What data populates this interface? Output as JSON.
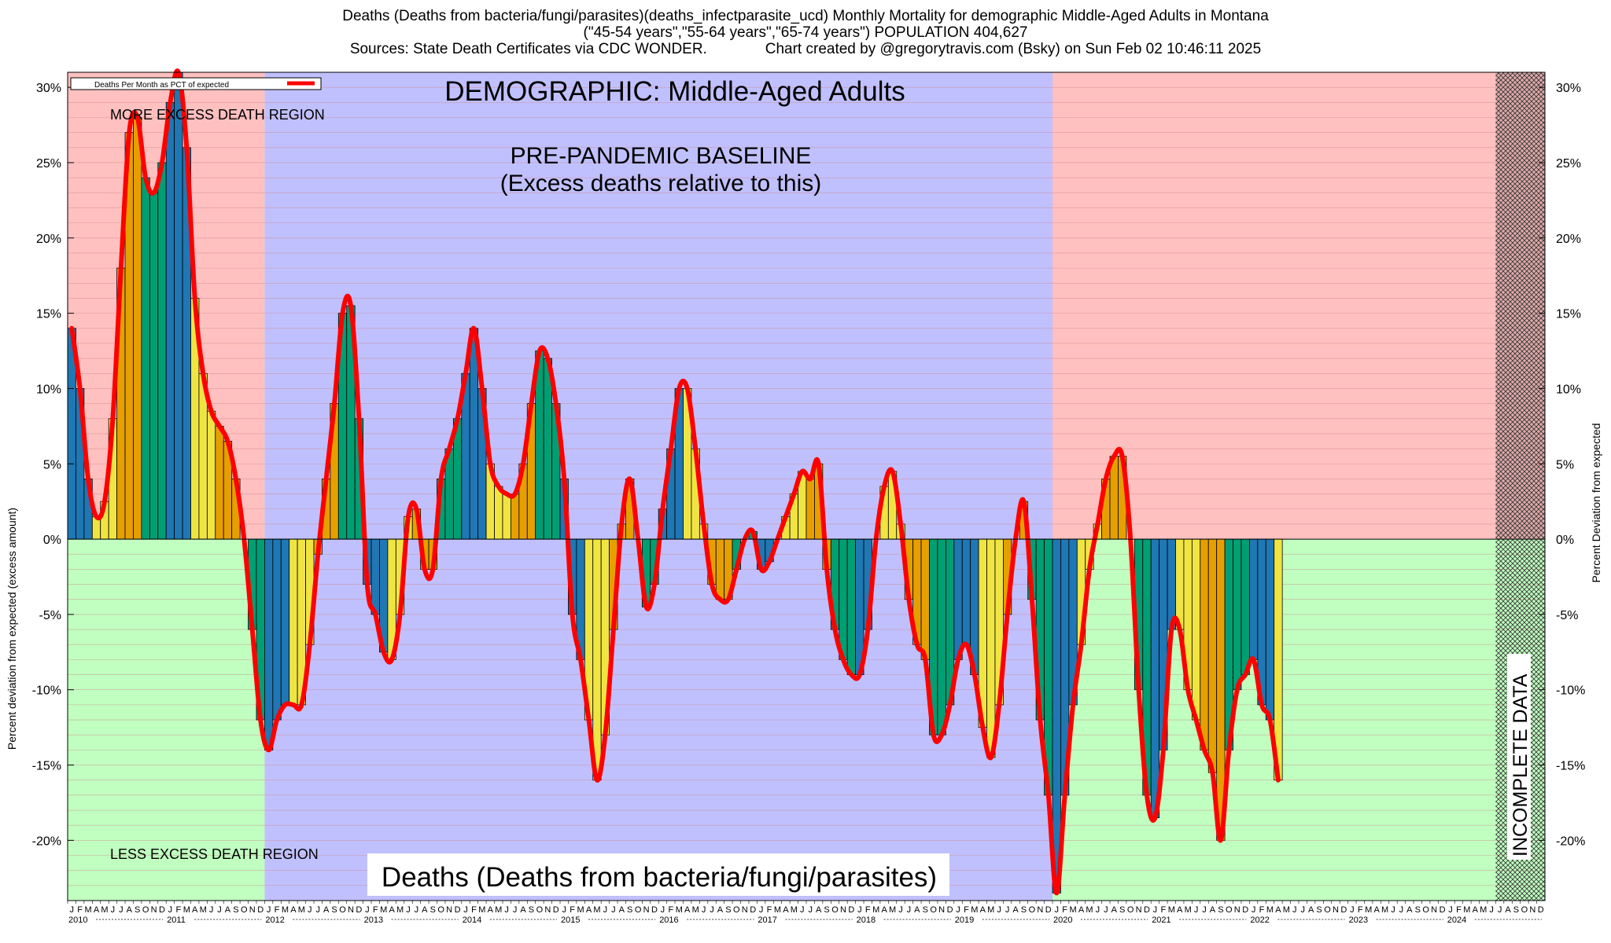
{
  "header": {
    "line1": "Deaths (Deaths from bacteria/fungi/parasites)(deaths_infectparasite_ucd) Monthly Mortality for demographic Middle-Aged Adults in Montana",
    "line2": "(\"45-54 years\",\"55-64 years\",\"65-74 years\") POPULATION 404,627",
    "line3_left": "Sources: State Death Certificates via CDC WONDER.",
    "line3_right": "Chart created by @gregorytravis.com (Bsky) on Sun Feb 02 10:46:11 2025"
  },
  "labels": {
    "demographic": "DEMOGRAPHIC: Middle-Aged Adults",
    "baseline_line1": "PRE-PANDEMIC BASELINE",
    "baseline_line2": "(Excess deaths relative to this)",
    "more_region": "MORE EXCESS DEATH REGION",
    "less_region": "LESS EXCESS DEATH REGION",
    "bottom_title": "Deaths (Deaths from bacteria/fungi/parasites)",
    "incomplete": "INCOMPLETE DATA",
    "legend": "Deaths Per Month as PCT of expected",
    "ylabel_left": "Percent deviation from expected (excess amount)",
    "ylabel_right": "Percent Deviation from expected"
  },
  "colors": {
    "excess_region": "#ffc0c0",
    "deficit_region": "#c0ffc0",
    "baseline_region": "#c0c0ff",
    "line": "#ff0000",
    "bar_palette": [
      "#1f77b4",
      "#f0e442",
      "#e69f00",
      "#009e73"
    ]
  },
  "chart_data": {
    "type": "bar",
    "x_start": "2010-01",
    "ylim": [
      -24,
      31
    ],
    "yticks": [
      -20,
      -15,
      -10,
      -5,
      0,
      5,
      10,
      15,
      20,
      25,
      30
    ],
    "ytick_labels": [
      "-20%",
      "-15%",
      "-10%",
      "-5%",
      "0%",
      "5%",
      "10%",
      "15%",
      "20%",
      "25%",
      "30%"
    ],
    "month_labels": [
      "J",
      "F",
      "M",
      "A",
      "M",
      "J",
      "J",
      "A",
      "S",
      "O",
      "N",
      "D"
    ],
    "years": [
      "2010",
      "2011",
      "2012",
      "2013",
      "2014",
      "2015",
      "2016",
      "2017",
      "2018",
      "2019",
      "2020",
      "2021",
      "2022",
      "2023",
      "2024"
    ],
    "baseline_period": [
      "2012-01",
      "2019-12"
    ],
    "incomplete_from": "2024-07",
    "values": [
      14,
      10,
      4,
      1.5,
      2.5,
      8,
      18,
      27,
      28,
      24,
      23,
      25,
      29,
      31,
      26,
      16,
      11,
      8.5,
      7.5,
      6.5,
      4,
      0,
      -6,
      -12,
      -14,
      -12,
      -11,
      -11,
      -11,
      -7,
      -1,
      4,
      9,
      15,
      15.5,
      8,
      -3,
      -5,
      -7.5,
      -8,
      -5,
      1.5,
      2,
      -2,
      -2,
      4,
      6,
      8,
      11,
      14,
      10,
      5,
      3.5,
      3,
      3,
      5,
      9,
      12.5,
      12,
      9,
      4,
      -5,
      -8,
      -12,
      -16,
      -13,
      -6,
      1,
      4,
      0,
      -4.5,
      -3,
      2,
      6,
      10,
      10,
      6,
      1,
      -3,
      -4,
      -4,
      -2,
      0,
      0.5,
      -2,
      -1.5,
      0,
      1.5,
      3,
      4.5,
      4,
      5,
      -2,
      -6,
      -8,
      -9,
      -9,
      -6,
      0,
      3.5,
      4.5,
      1,
      -4,
      -7,
      -8,
      -13,
      -13,
      -11,
      -8,
      -7,
      -9,
      -12.5,
      -14.5,
      -11,
      -5,
      0,
      2.5,
      -4,
      -12,
      -17,
      -23.5,
      -17,
      -11,
      -7,
      -2,
      1,
      4,
      5.5,
      5.5,
      0,
      -10,
      -17,
      -18.5,
      -14,
      -6,
      -6,
      -10,
      -12,
      -14,
      -15.5,
      -20,
      -14,
      -10,
      -9,
      -8,
      -11,
      -12,
      -16
    ]
  }
}
